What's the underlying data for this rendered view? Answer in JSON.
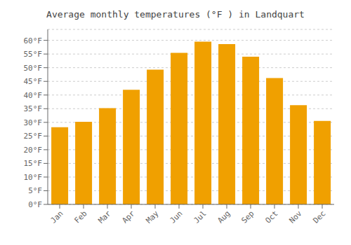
{
  "chart_data": {
    "type": "bar",
    "title": "Average monthly temperatures (°F ) in Landquart",
    "categories": [
      "Jan",
      "Feb",
      "Mar",
      "Apr",
      "May",
      "Jun",
      "Jul",
      "Aug",
      "Sep",
      "Oct",
      "Nov",
      "Dec"
    ],
    "values": [
      28.2,
      30.2,
      35.2,
      41.9,
      49.3,
      55.4,
      59.5,
      58.6,
      54.0,
      46.2,
      36.3,
      30.5
    ],
    "color": "#F0A000",
    "ylim": [
      0,
      64
    ],
    "yticks": [
      {
        "value": 0,
        "label": "0°F"
      },
      {
        "value": 5,
        "label": "5°F"
      },
      {
        "value": 10,
        "label": "10°F"
      },
      {
        "value": 15,
        "label": "15°F"
      },
      {
        "value": 20,
        "label": "20°F"
      },
      {
        "value": 25,
        "label": "25°F"
      },
      {
        "value": 30,
        "label": "30°F"
      },
      {
        "value": 35,
        "label": "35°F"
      },
      {
        "value": 40,
        "label": "40°F"
      },
      {
        "value": 45,
        "label": "45°F"
      },
      {
        "value": 50,
        "label": "50°F"
      },
      {
        "value": 55,
        "label": "55°F"
      },
      {
        "value": 60,
        "label": "60°F"
      }
    ],
    "grid": true
  }
}
